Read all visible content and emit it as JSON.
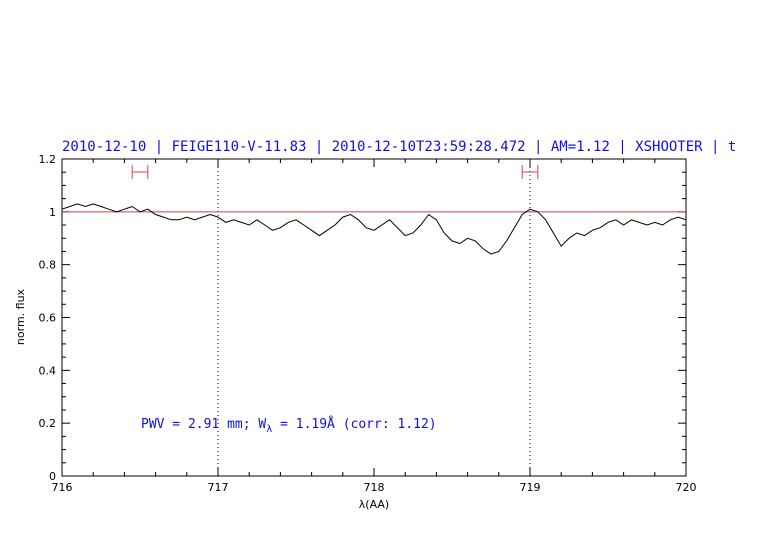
{
  "chart_data": {
    "type": "line",
    "title": "2010-12-10 | FEIGE110-V-11.83 | 2010-12-10T23:59:28.472 | AM=1.12 | XSHOOTER | t",
    "xlabel": "λ(AA)",
    "ylabel": "norm. flux",
    "xlim": [
      716,
      720
    ],
    "ylim": [
      0,
      1.2
    ],
    "x_ticks": [
      "716",
      "717",
      "718",
      "719",
      "720"
    ],
    "y_ticks": [
      "0",
      "0.2",
      "0.4",
      "0.6",
      "0.8",
      "1",
      "1.2"
    ],
    "grid": false,
    "continuum_level": 1.0,
    "vertical_markers": [
      717.0,
      719.0
    ],
    "continuum_windows": [
      [
        716.45,
        716.55
      ],
      [
        718.95,
        719.05
      ]
    ],
    "annotation": {
      "prefix": "PWV = 2.91 mm; W",
      "subscript": "λ",
      "suffix": " = 1.19Å (corr: 1.12)"
    },
    "colors": {
      "spectrum": "#000000",
      "continuum": "#d04040",
      "title": "#1010e0",
      "annotation": "#1010e0",
      "window": "#e04040"
    },
    "series": [
      {
        "x": [
          716.0,
          716.05,
          716.1,
          716.15,
          716.2,
          716.25,
          716.3,
          716.35,
          716.4,
          716.45,
          716.5,
          716.55,
          716.6,
          716.65,
          716.7,
          716.75,
          716.8,
          716.85,
          716.9,
          716.95,
          717.0,
          717.05,
          717.1,
          717.15,
          717.2,
          717.25,
          717.3,
          717.35,
          717.4,
          717.45,
          717.5,
          717.55,
          717.6,
          717.65,
          717.7,
          717.75,
          717.8,
          717.85,
          717.9,
          717.95,
          718.0,
          718.05,
          718.1,
          718.15,
          718.2,
          718.25,
          718.3,
          718.35,
          718.4,
          718.45,
          718.5,
          718.55,
          718.6,
          718.65,
          718.7,
          718.75,
          718.8,
          718.85,
          718.9,
          718.95,
          719.0,
          719.05,
          719.1,
          719.15,
          719.2,
          719.25,
          719.3,
          719.35,
          719.4,
          719.45,
          719.5,
          719.55,
          719.6,
          719.65,
          719.7,
          719.75,
          719.8,
          719.85,
          719.9,
          719.95,
          720.0
        ],
        "y": [
          1.01,
          1.02,
          1.03,
          1.02,
          1.03,
          1.02,
          1.01,
          1.0,
          1.01,
          1.02,
          1.0,
          1.01,
          0.99,
          0.98,
          0.97,
          0.97,
          0.98,
          0.97,
          0.98,
          0.99,
          0.98,
          0.96,
          0.97,
          0.96,
          0.95,
          0.97,
          0.95,
          0.93,
          0.94,
          0.96,
          0.97,
          0.95,
          0.93,
          0.91,
          0.93,
          0.95,
          0.98,
          0.99,
          0.97,
          0.94,
          0.93,
          0.95,
          0.97,
          0.94,
          0.91,
          0.92,
          0.95,
          0.99,
          0.97,
          0.92,
          0.89,
          0.88,
          0.9,
          0.89,
          0.86,
          0.84,
          0.85,
          0.89,
          0.94,
          0.99,
          1.01,
          1.0,
          0.97,
          0.92,
          0.87,
          0.9,
          0.92,
          0.91,
          0.93,
          0.94,
          0.96,
          0.97,
          0.95,
          0.97,
          0.96,
          0.95,
          0.96,
          0.95,
          0.97,
          0.98,
          0.97
        ]
      }
    ]
  }
}
